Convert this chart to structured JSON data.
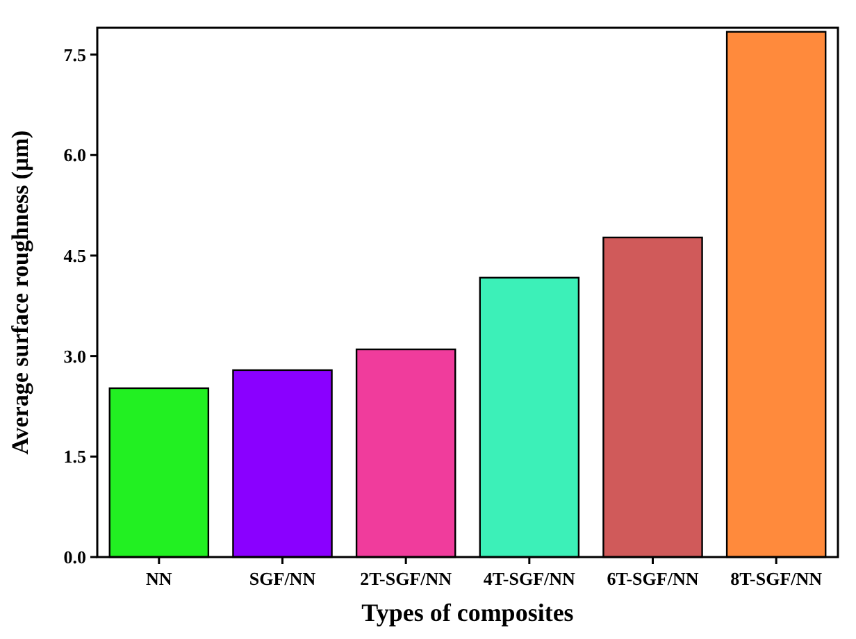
{
  "chart_data": {
    "type": "bar",
    "xlabel": "Types of composites",
    "ylabel": "Average surface roughness (µm)",
    "categories": [
      "NN",
      "SGF/NN",
      "2T-SGF/NN",
      "4T-SGF/NN",
      "6T-SGF/NN",
      "8T-SGF/NN"
    ],
    "values": [
      2.52,
      2.79,
      3.1,
      4.17,
      4.77,
      7.84
    ],
    "colors": [
      "#22f022",
      "#8a00ff",
      "#f03c9c",
      "#3cf0b8",
      "#d05a5a",
      "#ff8a3c"
    ],
    "ylim": [
      0,
      7.9
    ],
    "yticks": [
      {
        "value": 0,
        "label": "0.0"
      },
      {
        "value": 1.5,
        "label": "1.5"
      },
      {
        "value": 3,
        "label": "3.0"
      },
      {
        "value": 4.5,
        "label": "4.5"
      },
      {
        "value": 6,
        "label": "6.0"
      },
      {
        "value": 7.5,
        "label": "7.5"
      }
    ],
    "grid": false
  }
}
